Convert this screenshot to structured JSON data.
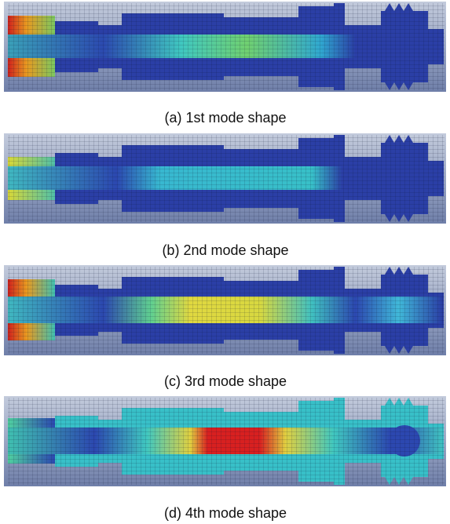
{
  "captions": [
    "(a) 1st mode shape",
    "(b) 2nd mode shape",
    "(c) 3rd mode shape",
    "(d) 4th mode shape"
  ]
}
